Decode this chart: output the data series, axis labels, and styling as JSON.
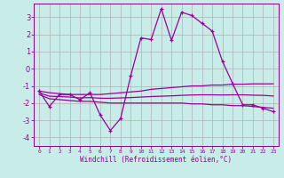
{
  "xlabel": "Windchill (Refroidissement éolien,°C)",
  "background_color": "#c8ece8",
  "grid_color": "#b0b0b0",
  "line_color": "#990099",
  "spine_color": "#880088",
  "xlim": [
    -0.5,
    23.5
  ],
  "ylim": [
    -4.5,
    3.8
  ],
  "yticks": [
    -4,
    -3,
    -2,
    -1,
    0,
    1,
    2,
    3
  ],
  "xticks": [
    0,
    1,
    2,
    3,
    4,
    5,
    6,
    7,
    8,
    9,
    10,
    11,
    12,
    13,
    14,
    15,
    16,
    17,
    18,
    19,
    20,
    21,
    22,
    23
  ],
  "x": [
    0,
    1,
    2,
    3,
    4,
    5,
    6,
    7,
    8,
    9,
    10,
    11,
    12,
    13,
    14,
    15,
    16,
    17,
    18,
    19,
    20,
    21,
    22,
    23
  ],
  "y_main": [
    -1.3,
    -2.2,
    -1.5,
    -1.5,
    -1.8,
    -1.4,
    -2.7,
    -3.6,
    -2.9,
    -0.4,
    1.8,
    1.7,
    3.5,
    1.65,
    3.3,
    3.1,
    2.65,
    2.2,
    0.45,
    -0.85,
    -2.1,
    -2.1,
    -2.3,
    -2.5
  ],
  "y_trend1": [
    -1.3,
    -1.4,
    -1.45,
    -1.5,
    -1.5,
    -1.5,
    -1.5,
    -1.45,
    -1.4,
    -1.35,
    -1.3,
    -1.2,
    -1.15,
    -1.1,
    -1.05,
    -1.0,
    -1.0,
    -0.95,
    -0.95,
    -0.9,
    -0.9,
    -0.88,
    -0.88,
    -0.88
  ],
  "y_trend2": [
    -1.5,
    -1.75,
    -1.8,
    -1.85,
    -1.9,
    -1.9,
    -1.95,
    -2.0,
    -2.0,
    -2.0,
    -2.0,
    -2.0,
    -2.0,
    -2.0,
    -2.0,
    -2.05,
    -2.05,
    -2.1,
    -2.1,
    -2.15,
    -2.15,
    -2.2,
    -2.25,
    -2.3
  ],
  "y_trend3": [
    -1.4,
    -1.6,
    -1.62,
    -1.65,
    -1.7,
    -1.68,
    -1.72,
    -1.72,
    -1.7,
    -1.68,
    -1.65,
    -1.62,
    -1.6,
    -1.58,
    -1.55,
    -1.53,
    -1.52,
    -1.52,
    -1.53,
    -1.52,
    -1.52,
    -1.54,
    -1.55,
    -1.59
  ]
}
